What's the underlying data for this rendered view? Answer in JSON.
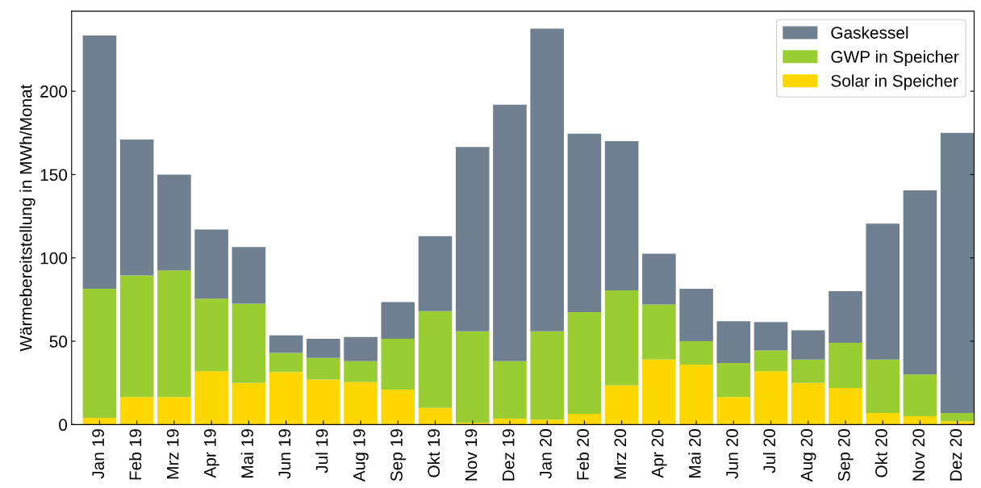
{
  "chart_data": {
    "type": "bar",
    "stacked": true,
    "ylabel": "Wärmebereitstellung in MWh/Monat",
    "categories": [
      "Jan 19",
      "Feb 19",
      "Mrz 19",
      "Apr 19",
      "Mai 19",
      "Jun 19",
      "Jul 19",
      "Aug 19",
      "Sep 19",
      "Okt 19",
      "Nov 19",
      "Dez 19",
      "Jan 20",
      "Feb 20",
      "Mrz 20",
      "Apr 20",
      "Mai 20",
      "Jun 20",
      "Jul 20",
      "Aug 20",
      "Sep 20",
      "Okt 20",
      "Nov 20",
      "Dez 20"
    ],
    "series": [
      {
        "name": "Solar in Speicher",
        "color": "#ffd700",
        "values": [
          4,
          16.5,
          16.5,
          32,
          25,
          31.5,
          27,
          25.5,
          21,
          10,
          1,
          3.5,
          3,
          6.5,
          23.5,
          39,
          36,
          16.5,
          32,
          25,
          22,
          7,
          5,
          2
        ]
      },
      {
        "name": "GWP in Speicher",
        "color": "#9acd32",
        "values": [
          77.5,
          73,
          76,
          43.5,
          47.5,
          11.5,
          13,
          12.5,
          30.5,
          58,
          55,
          34.5,
          53,
          61,
          57,
          33,
          14,
          20.5,
          12.5,
          14,
          27,
          32,
          25,
          5
        ]
      },
      {
        "name": "Gaskessel",
        "color": "#708090",
        "values": [
          152,
          81.5,
          57.5,
          41.5,
          34,
          10.5,
          11.5,
          14.5,
          22,
          45,
          110.5,
          154,
          181.5,
          107,
          89.5,
          30.5,
          31.5,
          25,
          17,
          17.5,
          31,
          81.5,
          110.5,
          168
        ]
      }
    ],
    "ylim": [
      0,
      248
    ],
    "yticks": [
      0,
      50,
      100,
      150,
      200
    ],
    "grid": false,
    "legend": "top right"
  }
}
